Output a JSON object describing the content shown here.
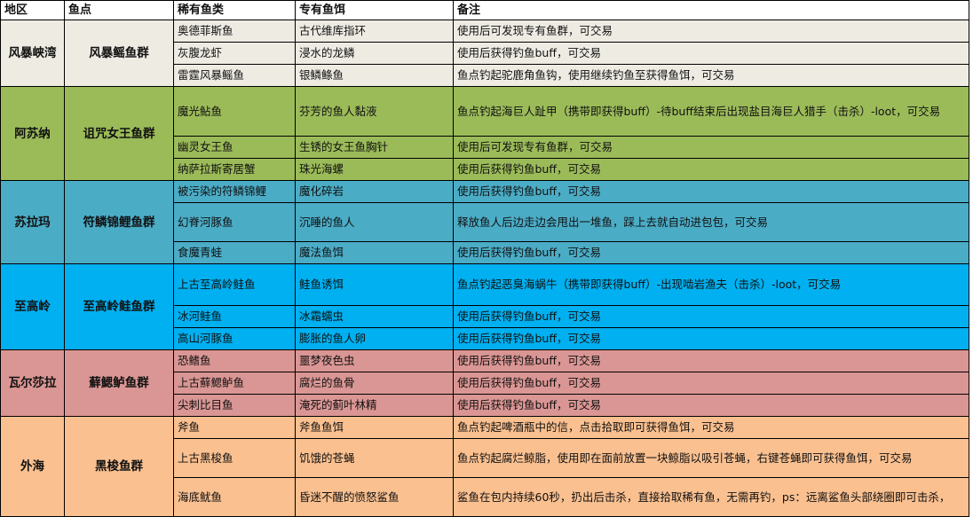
{
  "headers": [
    "地区",
    "鱼点",
    "稀有鱼类",
    "专有鱼饵",
    "备注"
  ],
  "colors": {
    "group0": "#eeebe3",
    "group1": "#9bbb59",
    "group2": "#4bacc6",
    "group3": "#00b0f0",
    "group4": "#da9694",
    "group5": "#fac090"
  },
  "groups": [
    {
      "region": "风暴峡湾",
      "spot": "风暴鳐鱼群",
      "rows": [
        {
          "fish": "奥德菲斯鱼",
          "bait": "古代维库指环",
          "note": "使用后可发现专有鱼群，可交易"
        },
        {
          "fish": "灰腹龙虾",
          "bait": "浸水的龙鳞",
          "note": "使用后获得钓鱼buff，可交易"
        },
        {
          "fish": "雷霆风暴鳐鱼",
          "bait": "银鳞鲦鱼",
          "note": "鱼点钓起驼鹿角鱼钩，使用继续钓鱼至获得鱼饵，可交易"
        }
      ]
    },
    {
      "region": "阿苏纳",
      "spot": "诅咒女王鱼群",
      "rows": [
        {
          "fish": "魔光鲇鱼",
          "bait": "芬芳的鱼人黏液",
          "note": "鱼点钓起海巨人趾甲（携带即获得buff）-待buff结束后出现盐目海巨人猎手（击杀）-loot，可交易"
        },
        {
          "fish": "幽灵女王鱼",
          "bait": "生锈的女王鱼胸针",
          "note": "使用后可发现专有鱼群，可交易"
        },
        {
          "fish": "纳萨拉斯寄居蟹",
          "bait": "珠光海螺",
          "note": "使用后获得钓鱼buff，可交易"
        }
      ]
    },
    {
      "region": "苏拉玛",
      "spot": "符鳞锦鲤鱼群",
      "rows": [
        {
          "fish": "被污染的符鳞锦鲤",
          "bait": "魔化碎岩",
          "note": "使用后获得钓鱼buff，可交易"
        },
        {
          "fish": "幻脊河豚鱼",
          "bait": "沉睡的鱼人",
          "note": "释放鱼人后边走边会甩出一堆鱼，踩上去就自动进包包，可交易"
        },
        {
          "fish": "食魔青蛙",
          "bait": "魔法鱼饵",
          "note": "使用后获得钓鱼buff，可交易"
        }
      ]
    },
    {
      "region": "至高岭",
      "spot": "至高岭鲑鱼群",
      "rows": [
        {
          "fish": "上古至高岭鲑鱼",
          "bait": "鲑鱼诱饵",
          "note": "鱼点钓起恶臭海蜗牛（携带即获得buff）-出现啮岩渔夫（击杀）-loot，可交易"
        },
        {
          "fish": "冰河鲑鱼",
          "bait": "冰霜蠕虫",
          "note": "使用后获得钓鱼buff，可交易"
        },
        {
          "fish": "高山河豚鱼",
          "bait": "膨胀的鱼人卵",
          "note": "使用后获得钓鱼buff，可交易"
        }
      ]
    },
    {
      "region": "瓦尔莎拉",
      "spot": "蘚鰓鲈鱼群",
      "rows": [
        {
          "fish": "恐鳍鱼",
          "bait": "噩梦夜色虫",
          "note": "使用后获得钓鱼buff，可交易"
        },
        {
          "fish": "上古蘚鰓鲈鱼",
          "bait": "腐烂的鱼骨",
          "note": "使用后获得钓鱼buff，可交易"
        },
        {
          "fish": "尖刺比目鱼",
          "bait": "淹死的蓟叶林精",
          "note": "使用后获得钓鱼buff，可交易"
        }
      ]
    },
    {
      "region": "外海",
      "spot": "黑梭鱼群",
      "rows": [
        {
          "fish": "斧鱼",
          "bait": "斧鱼鱼饵",
          "note": "鱼点钓起啤酒瓶中的信，点击拾取即可获得鱼饵，可交易"
        },
        {
          "fish": "上古黑梭鱼",
          "bait": "饥饿的苍蝇",
          "note": "鱼点钓起腐烂鲸脂，使用即在面前放置一块鲸脂以吸引苍蝇，右键苍蝇即可获得鱼饵，可交易"
        },
        {
          "fish": "海底鱿鱼",
          "bait": "昏迷不醒的愤怒鲨鱼",
          "note": "鲨鱼在包内持续60秒，扔出后击杀，直接拾取稀有鱼，无需再钓，ps：远离鲨鱼头部绕圈即可击杀，"
        }
      ]
    }
  ]
}
